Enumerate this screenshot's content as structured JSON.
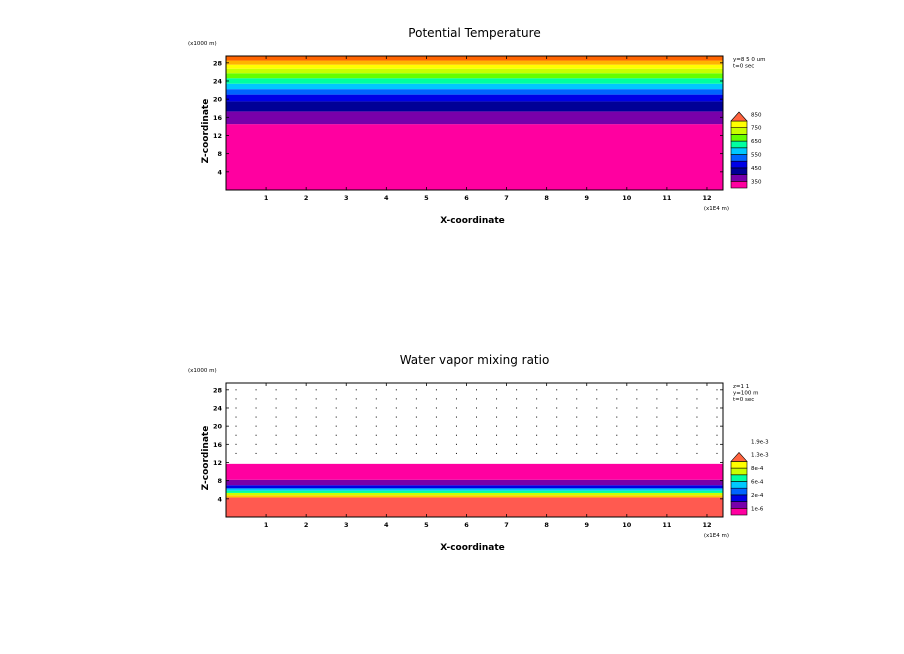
{
  "chart_data": [
    {
      "type": "heatmap",
      "title": "Potential Temperature",
      "xlabel": "X-coordinate",
      "ylabel": "Z-coordinate",
      "x_unit": "(x1E4 m)",
      "y_unit": "(x1000 m)",
      "xlim": [
        0,
        12.4
      ],
      "ylim": [
        0,
        29.5
      ],
      "x_ticks": [
        1,
        2,
        3,
        4,
        5,
        6,
        7,
        8,
        9,
        10,
        11,
        12
      ],
      "y_ticks": [
        4,
        8,
        12,
        16,
        20,
        24,
        28
      ],
      "info_lines": [
        "y=8 5 0 um",
        "t=0 sec"
      ],
      "bands": [
        {
          "z0": 0,
          "z1": 14.5,
          "color": "#ff00a0"
        },
        {
          "z0": 14.5,
          "z1": 17.3,
          "color": "#7800aa"
        },
        {
          "z0": 17.3,
          "z1": 19.5,
          "color": "#000096"
        },
        {
          "z0": 19.5,
          "z1": 21.0,
          "color": "#0000e6"
        },
        {
          "z0": 21.0,
          "z1": 22.2,
          "color": "#0064ff"
        },
        {
          "z0": 22.2,
          "z1": 23.4,
          "color": "#00c8ff"
        },
        {
          "z0": 23.4,
          "z1": 24.6,
          "color": "#00ffa0"
        },
        {
          "z0": 24.6,
          "z1": 25.7,
          "color": "#64ff00"
        },
        {
          "z0": 25.7,
          "z1": 26.7,
          "color": "#c8ff00"
        },
        {
          "z0": 26.7,
          "z1": 27.6,
          "color": "#ffff00"
        },
        {
          "z0": 27.6,
          "z1": 28.5,
          "color": "#ffb400"
        },
        {
          "z0": 28.5,
          "z1": 29.5,
          "color": "#ff6400"
        }
      ],
      "legend": {
        "colors": [
          "#ff00a0",
          "#7800aa",
          "#000096",
          "#0000e6",
          "#0064ff",
          "#00c8ff",
          "#00ffa0",
          "#64ff00",
          "#c8ff00",
          "#ffff00"
        ],
        "arrow_color": "#ff6440",
        "labels": [
          "350",
          "450",
          "550",
          "650",
          "750",
          "850"
        ]
      },
      "dots": false
    },
    {
      "type": "heatmap",
      "title": "Water vapor mixing ratio",
      "xlabel": "X-coordinate",
      "ylabel": "Z-coordinate",
      "x_unit": "(x1E4 m)",
      "y_unit": "(x1000 m)",
      "xlim": [
        0,
        12.4
      ],
      "ylim": [
        0,
        29.5
      ],
      "x_ticks": [
        1,
        2,
        3,
        4,
        5,
        6,
        7,
        8,
        9,
        10,
        11,
        12
      ],
      "y_ticks": [
        4,
        8,
        12,
        16,
        20,
        24,
        28
      ],
      "info_lines": [
        "z=1 1",
        "y=100 m",
        "t=0 sec"
      ],
      "bands": [
        {
          "z0": 0,
          "z1": 4.3,
          "color": "#ff5a50"
        },
        {
          "z0": 4.3,
          "z1": 4.8,
          "color": "#ffc800"
        },
        {
          "z0": 4.8,
          "z1": 5.3,
          "color": "#c8ff00"
        },
        {
          "z0": 5.3,
          "z1": 5.8,
          "color": "#00ffa0"
        },
        {
          "z0": 5.8,
          "z1": 6.3,
          "color": "#00c8ff"
        },
        {
          "z0": 6.3,
          "z1": 7.0,
          "color": "#0000e6"
        },
        {
          "z0": 7.0,
          "z1": 8.2,
          "color": "#7800aa"
        },
        {
          "z0": 8.2,
          "z1": 11.7,
          "color": "#ff00a0"
        }
      ],
      "legend": {
        "colors": [
          "#ff00a0",
          "#7800aa",
          "#0000e6",
          "#0064ff",
          "#00c8ff",
          "#00ffa0",
          "#c8ff00",
          "#ffff00"
        ],
        "arrow_color": "#ff6440",
        "labels": [
          "1e-6",
          "2e-4",
          "6e-4",
          "8e-4",
          "1.3e-3",
          "1.9e-3"
        ]
      },
      "dots": true
    }
  ]
}
